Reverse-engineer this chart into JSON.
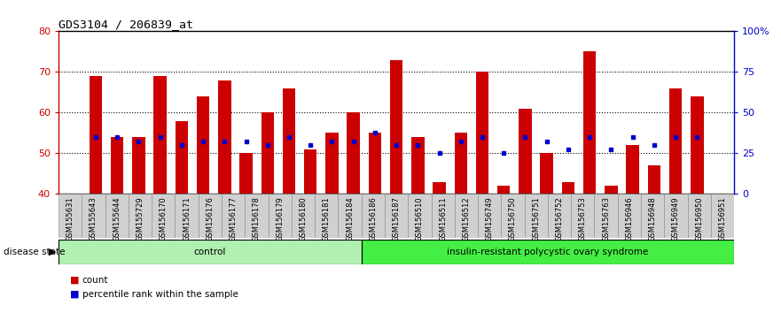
{
  "title": "GDS3104 / 206839_at",
  "samples": [
    "GSM155631",
    "GSM155643",
    "GSM155644",
    "GSM155729",
    "GSM156170",
    "GSM156171",
    "GSM156176",
    "GSM156177",
    "GSM156178",
    "GSM156179",
    "GSM156180",
    "GSM156181",
    "GSM156184",
    "GSM156186",
    "GSM156187",
    "GSM156510",
    "GSM156511",
    "GSM156512",
    "GSM156749",
    "GSM156750",
    "GSM156751",
    "GSM156752",
    "GSM156753",
    "GSM156763",
    "GSM156946",
    "GSM156948",
    "GSM156949",
    "GSM156950",
    "GSM156951"
  ],
  "count_values": [
    69,
    54,
    54,
    69,
    58,
    64,
    68,
    50,
    60,
    66,
    51,
    55,
    60,
    55,
    73,
    54,
    43,
    55,
    70,
    42,
    61,
    50,
    43,
    75,
    42,
    52,
    47,
    66,
    64
  ],
  "percentile_values": [
    54,
    54,
    53,
    54,
    52,
    53,
    53,
    53,
    52,
    54,
    52,
    53,
    53,
    55,
    52,
    52,
    50,
    53,
    54,
    50,
    54,
    53,
    51,
    54,
    51,
    54,
    52,
    54,
    54
  ],
  "group_labels": [
    "control",
    "insulin-resistant polycystic ovary syndrome"
  ],
  "group_sizes": [
    13,
    16
  ],
  "group_colors_light": [
    "#c8f5c8",
    "#66ee66"
  ],
  "ylim_left": [
    40,
    80
  ],
  "ylim_right": [
    0,
    100
  ],
  "yticks_left": [
    40,
    50,
    60,
    70,
    80
  ],
  "yticks_right": [
    0,
    25,
    50,
    75,
    100
  ],
  "ytick_labels_right": [
    "0",
    "25",
    "50",
    "75",
    "100%"
  ],
  "bar_color": "#cc0000",
  "percentile_color": "#0000cc",
  "bar_width": 0.6,
  "tick_label_color_left": "#cc0000",
  "tick_label_color_right": "#0000cc",
  "xtick_bg_color": "#d0d0d0",
  "dotted_gridlines": [
    50,
    60,
    70
  ]
}
